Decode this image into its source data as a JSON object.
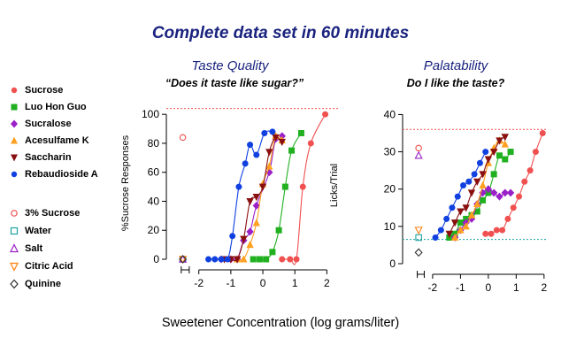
{
  "header": {
    "title": "Complete data set in 60 minutes"
  },
  "shared": {
    "xlabel": "Sweetener Concentration (log grams/liter)"
  },
  "legend": {
    "sweeteners": [
      {
        "name": "Sucrose",
        "color": "#f05050",
        "icon": "circle-filled"
      },
      {
        "name": "Luo Hon Guo",
        "color": "#20b020",
        "icon": "square-filled"
      },
      {
        "name": "Sucralose",
        "color": "#9a20c8",
        "icon": "diamond-filled"
      },
      {
        "name": "Acesulfame K",
        "color": "#ffa020",
        "icon": "triangle-up-filled"
      },
      {
        "name": "Saccharin",
        "color": "#8a1010",
        "icon": "triangle-down-filled"
      },
      {
        "name": "Rebaudioside A",
        "color": "#1040e0",
        "icon": "circle-filled"
      }
    ],
    "controls": [
      {
        "name": "3% Sucrose",
        "color": "#f05050",
        "icon": "circle-open"
      },
      {
        "name": "Water",
        "color": "#20a0a0",
        "icon": "square-open"
      },
      {
        "name": "Salt",
        "color": "#9a20c8",
        "icon": "triangle-up-open"
      },
      {
        "name": "Citric Acid",
        "color": "#ff8010",
        "icon": "triangle-down-open"
      },
      {
        "name": "Quinine",
        "color": "#303030",
        "icon": "diamond-open"
      }
    ]
  },
  "chart_data": [
    {
      "type": "scatter",
      "title": "Taste Quality",
      "subtitle": "“Does it taste like sugar?”",
      "xlabel": "",
      "ylabel": "%Sucrose Responses",
      "xlim": [
        -2.6,
        2.1
      ],
      "ylim": [
        0,
        105
      ],
      "xticks": [
        -2,
        -1,
        0,
        1,
        2
      ],
      "yticks": [
        0,
        20,
        40,
        60,
        80,
        100
      ],
      "reference_lines": [
        {
          "y": 104,
          "color": "#f05050"
        }
      ],
      "series": [
        {
          "name": "Sucrose",
          "color": "#f05050",
          "marker": "circle-filled",
          "x": [
            0.6,
            0.85,
            1.05,
            1.25,
            1.5,
            1.95
          ],
          "y": [
            0,
            0,
            0,
            50,
            80,
            100
          ]
        },
        {
          "name": "Luo Hon Guo",
          "color": "#20b020",
          "marker": "square-filled",
          "x": [
            -0.3,
            -0.1,
            0.1,
            0.3,
            0.5,
            0.7,
            0.9,
            1.2
          ],
          "y": [
            0,
            0,
            0,
            5,
            20,
            50,
            75,
            87
          ]
        },
        {
          "name": "Sucralose",
          "color": "#9a20c8",
          "marker": "diamond-filled",
          "x": [
            -1.3,
            -1.0,
            -0.8,
            -0.6,
            -0.4,
            -0.2,
            0.2,
            0.4,
            0.6
          ],
          "y": [
            0,
            0,
            0,
            13,
            19,
            37,
            60,
            83,
            85
          ]
        },
        {
          "name": "Acesulfame K",
          "color": "#ffa020",
          "marker": "triangle-up-filled",
          "x": [
            -0.8,
            -0.6,
            -0.4,
            -0.2,
            0.0,
            0.2,
            0.4,
            0.6
          ],
          "y": [
            0,
            0,
            10,
            25,
            52,
            64,
            85,
            82
          ]
        },
        {
          "name": "Saccharin",
          "color": "#8a1010",
          "marker": "triangle-down-filled",
          "x": [
            -1.2,
            -1.0,
            -0.8,
            -0.6,
            -0.4,
            -0.2,
            0.0,
            0.2,
            0.4,
            0.6
          ],
          "y": [
            0,
            0,
            0,
            14,
            40,
            43,
            50,
            74,
            84,
            81
          ]
        },
        {
          "name": "Rebaudioside A",
          "color": "#1040e0",
          "marker": "circle-filled",
          "x": [
            -1.7,
            -1.5,
            -1.3,
            -1.1,
            -0.95,
            -0.75,
            -0.55,
            -0.4,
            -0.2,
            0.05,
            0.3
          ],
          "y": [
            0,
            0,
            0,
            0,
            16,
            50,
            66,
            79,
            72,
            87,
            88
          ]
        }
      ],
      "controls": [
        {
          "name": "3% Sucrose",
          "x": -2.5,
          "y": 84
        },
        {
          "name": "Water",
          "x": -2.5,
          "y": 0
        },
        {
          "name": "Salt",
          "x": -2.5,
          "y": 0
        },
        {
          "name": "Citric Acid",
          "x": -2.5,
          "y": 0
        },
        {
          "name": "Quinine",
          "x": -2.5,
          "y": 0
        }
      ]
    },
    {
      "type": "scatter",
      "title": "Palatability",
      "subtitle": "Do I like the taste?",
      "xlabel": "",
      "ylabel": "Licks/Trial",
      "xlim": [
        -2.6,
        2.1
      ],
      "ylim": [
        0,
        42
      ],
      "xticks": [
        -2,
        -1,
        0,
        1,
        2
      ],
      "yticks": [
        0,
        10,
        20,
        30,
        40
      ],
      "reference_lines": [
        {
          "y": 36,
          "color": "#f05050"
        },
        {
          "y": 6.5,
          "color": "#20a0a0"
        }
      ],
      "series": [
        {
          "name": "Sucrose",
          "color": "#f05050",
          "marker": "circle-filled",
          "x": [
            -0.1,
            0.1,
            0.3,
            0.5,
            0.7,
            0.9,
            1.1,
            1.3,
            1.5,
            1.7,
            1.95
          ],
          "y": [
            8,
            8,
            9,
            9,
            12,
            15,
            18,
            22,
            25,
            30,
            35
          ]
        },
        {
          "name": "Luo Hon Guo",
          "color": "#20b020",
          "marker": "square-filled",
          "x": [
            -1.4,
            -1.2,
            -1.0,
            -0.8,
            -0.6,
            -0.4,
            -0.2,
            0.0,
            0.2,
            0.4,
            0.6,
            0.8
          ],
          "y": [
            7,
            8,
            11,
            12,
            13,
            14,
            17,
            19,
            24,
            29,
            28,
            30
          ]
        },
        {
          "name": "Sucralose",
          "color": "#9a20c8",
          "marker": "diamond-filled",
          "x": [
            -1.2,
            -1.0,
            -0.8,
            -0.6,
            -0.4,
            -0.2,
            0.0,
            0.2,
            0.4,
            0.6,
            0.8
          ],
          "y": [
            7,
            9,
            11,
            12,
            16,
            19,
            20,
            19,
            18,
            19,
            19
          ]
        },
        {
          "name": "Acesulfame K",
          "color": "#ffa020",
          "marker": "triangle-up-filled",
          "x": [
            -1.2,
            -1.0,
            -0.8,
            -0.6,
            -0.4,
            -0.2,
            0.0,
            0.2,
            0.4,
            0.6
          ],
          "y": [
            7,
            9,
            10,
            13,
            16,
            21,
            27,
            31,
            33,
            32
          ]
        },
        {
          "name": "Saccharin",
          "color": "#8a1010",
          "marker": "triangle-down-filled",
          "x": [
            -1.4,
            -1.2,
            -1.0,
            -0.8,
            -0.6,
            -0.4,
            -0.2,
            0.0,
            0.2,
            0.4,
            0.6
          ],
          "y": [
            8,
            11,
            14,
            15,
            19,
            22,
            24,
            28,
            30,
            33,
            34
          ]
        },
        {
          "name": "Rebaudioside A",
          "color": "#1040e0",
          "marker": "circle-filled",
          "x": [
            -1.9,
            -1.7,
            -1.5,
            -1.3,
            -1.1,
            -0.9,
            -0.7,
            -0.5,
            -0.3,
            -0.1
          ],
          "y": [
            7,
            9,
            12,
            15,
            18,
            21,
            22,
            24,
            27,
            30
          ]
        }
      ],
      "controls": [
        {
          "name": "3% Sucrose",
          "x": -2.5,
          "y": 31
        },
        {
          "name": "Water",
          "x": -2.5,
          "y": 7
        },
        {
          "name": "Salt",
          "x": -2.5,
          "y": 29
        },
        {
          "name": "Citric Acid",
          "x": -2.5,
          "y": 9
        },
        {
          "name": "Quinine",
          "x": -2.5,
          "y": 3
        }
      ]
    }
  ]
}
